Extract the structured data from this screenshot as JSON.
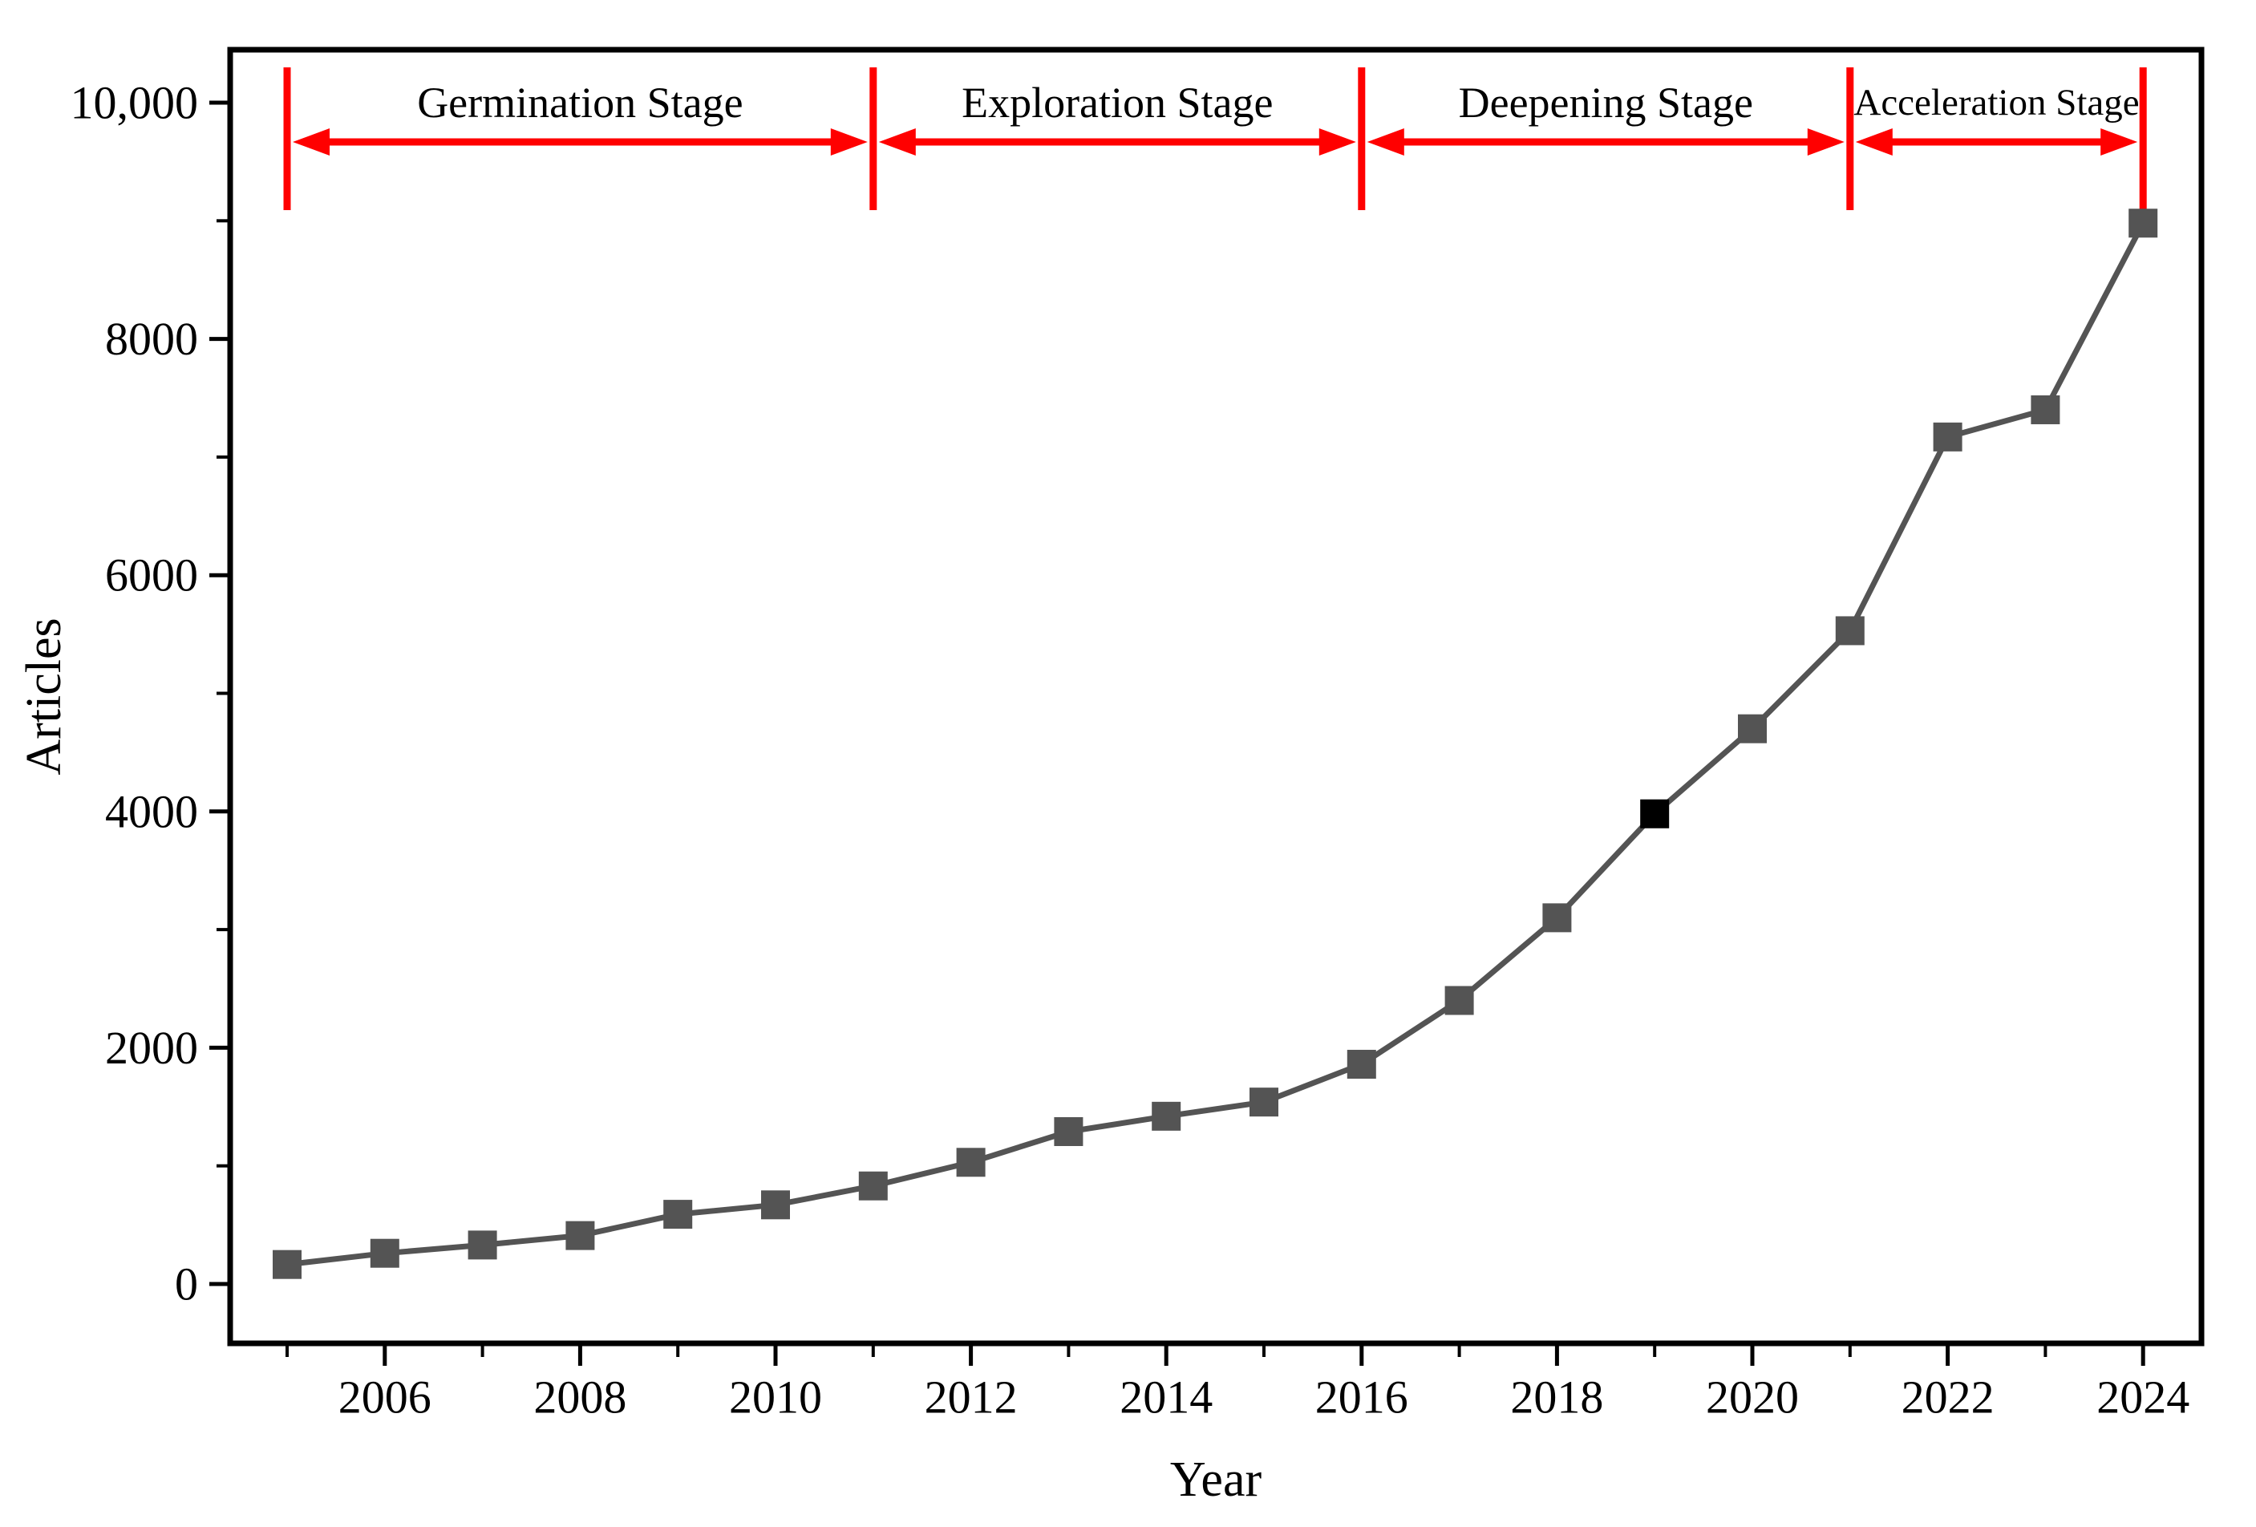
{
  "chart_data": {
    "type": "line",
    "title": "",
    "xlabel": "Year",
    "ylabel": "Articles",
    "x": [
      2005,
      2006,
      2007,
      2008,
      2009,
      2010,
      2011,
      2012,
      2013,
      2014,
      2015,
      2016,
      2017,
      2018,
      2019,
      2020,
      2021,
      2022,
      2023,
      2024
    ],
    "values": [
      165,
      260,
      330,
      410,
      590,
      670,
      830,
      1030,
      1290,
      1420,
      1540,
      1860,
      2400,
      3100,
      3980,
      4700,
      5530,
      7170,
      7400,
      8980
    ],
    "highlight_x": 2019,
    "xlim": [
      2004.4,
      2024.65
    ],
    "ylim": [
      -480,
      10460
    ],
    "grid": false,
    "legend": "none",
    "xticks": [
      {
        "year": 2006,
        "label": "2006"
      },
      {
        "year": 2008,
        "label": "2008"
      },
      {
        "year": 2010,
        "label": "2010"
      },
      {
        "year": 2012,
        "label": "2012"
      },
      {
        "year": 2014,
        "label": "2014"
      },
      {
        "year": 2016,
        "label": "2016"
      },
      {
        "year": 2018,
        "label": "2018"
      },
      {
        "year": 2020,
        "label": "2020"
      },
      {
        "year": 2022,
        "label": "2022"
      },
      {
        "year": 2024,
        "label": "2024"
      }
    ],
    "xticks_minor": [
      2005,
      2007,
      2009,
      2011,
      2013,
      2015,
      2017,
      2019,
      2021,
      2023
    ],
    "yticks": [
      {
        "value": 0,
        "label": "0"
      },
      {
        "value": 2000,
        "label": "2000"
      },
      {
        "value": 4000,
        "label": "4000"
      },
      {
        "value": 6000,
        "label": "6000"
      },
      {
        "value": 8000,
        "label": "8000"
      },
      {
        "value": 10000,
        "label": "10,000"
      }
    ],
    "yticks_minor": [
      1000,
      3000,
      5000,
      7000,
      9000
    ],
    "stages": [
      {
        "label": "Germination Stage",
        "from": 2005,
        "to": 2011
      },
      {
        "label": "Exploration Stage",
        "from": 2011,
        "to": 2016
      },
      {
        "label": "Deepening Stage",
        "from": 2016,
        "to": 2021
      },
      {
        "label": "Acceleration Stage",
        "from": 2021,
        "to": 2024
      }
    ],
    "stage_boundaries": [
      2005,
      2011,
      2016,
      2021,
      2024
    ],
    "colors": {
      "line": "#545454",
      "marker": "#545454",
      "highlight_marker": "#000000",
      "annotation": "#ff0000",
      "axis": "#000000",
      "background": "#ffffff"
    }
  }
}
